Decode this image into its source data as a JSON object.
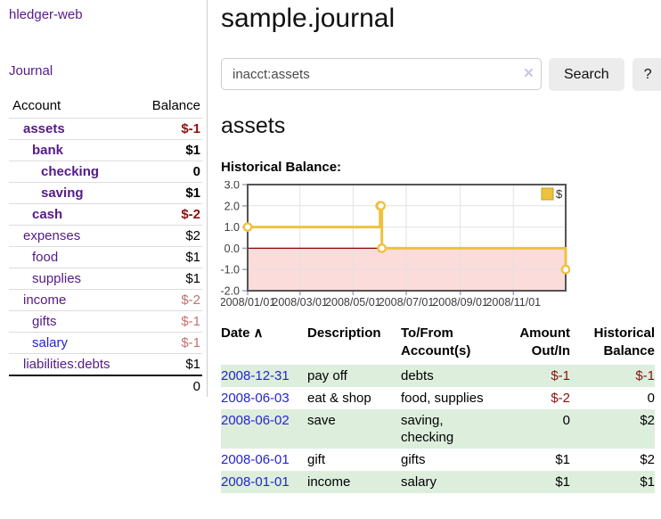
{
  "brand": "hledger-web",
  "sidebar": {
    "journal_link": "Journal",
    "accounts_table": {
      "headers": {
        "account": "Account",
        "balance": "Balance"
      },
      "rows": [
        {
          "name": "assets",
          "balance": "$-1",
          "level": 1,
          "bold": true,
          "balance_color": "dark-red"
        },
        {
          "name": "bank",
          "balance": "$1",
          "level": 2,
          "bold": true,
          "balance_color": "black"
        },
        {
          "name": "checking",
          "balance": "0",
          "level": 3,
          "bold": true,
          "balance_color": "black"
        },
        {
          "name": "saving",
          "balance": "$1",
          "level": 3,
          "bold": true,
          "balance_color": "black"
        },
        {
          "name": "cash",
          "balance": "$-2",
          "level": 2,
          "bold": true,
          "balance_color": "dark-red"
        },
        {
          "name": "expenses",
          "balance": "$2",
          "level": 1,
          "bold": false,
          "balance_color": "black"
        },
        {
          "name": "food",
          "balance": "$1",
          "level": 2,
          "bold": false,
          "balance_color": "black"
        },
        {
          "name": "supplies",
          "balance": "$1",
          "level": 2,
          "bold": false,
          "balance_color": "black"
        },
        {
          "name": "income",
          "balance": "$-2",
          "level": 1,
          "bold": false,
          "balance_color": "soft-red"
        },
        {
          "name": "gifts",
          "balance": "$-1",
          "level": 2,
          "bold": false,
          "balance_color": "soft-red"
        },
        {
          "name": "salary",
          "balance": "$-1",
          "level": 2,
          "bold": false,
          "balance_color": "soft-red",
          "link_color": "blue"
        },
        {
          "name": "liabilities:debts",
          "balance": "$1",
          "level": 1,
          "bold": false,
          "balance_color": "black"
        }
      ],
      "total": "0"
    }
  },
  "main": {
    "title": "sample.journal",
    "search": {
      "value": "inacct:assets",
      "clear_icon": "×",
      "search_button": "Search",
      "help_button": "?"
    },
    "account_heading": "assets",
    "chart_label": "Historical Balance:"
  },
  "chart_data": {
    "type": "line",
    "style": "step",
    "title": "Historical Balance",
    "x_start": "2008-01-01",
    "x_range_days": 365,
    "ylim": [
      -2,
      3
    ],
    "y_ticks": [
      "3.0",
      "2.0",
      "1.0",
      "0.0",
      "-1.0",
      "-2.0"
    ],
    "x_ticks": [
      {
        "label": "2008/01/01",
        "day": 0
      },
      {
        "label": "2008/03/01",
        "day": 60
      },
      {
        "label": "2008/05/01",
        "day": 121
      },
      {
        "label": "2008/07/01",
        "day": 182
      },
      {
        "label": "2008/09/01",
        "day": 244
      },
      {
        "label": "2008/11/01",
        "day": 305
      }
    ],
    "series": [
      {
        "name": "$",
        "color": "#edc240",
        "points": [
          [
            "2008-01-01",
            1
          ],
          [
            "2008-06-01",
            2
          ],
          [
            "2008-06-02",
            2
          ],
          [
            "2008-06-03",
            0
          ],
          [
            "2008-12-31",
            -1
          ]
        ]
      }
    ],
    "legend": {
      "label": "$",
      "position": "top-right"
    },
    "grid": true,
    "negative_region_color": "#fcdbdb",
    "zero_line_color": "#8b0000",
    "border_color": "#545454"
  },
  "register_table": {
    "sort_icon": "∧",
    "headers": {
      "date": "Date",
      "description": "Description",
      "accounts": "To/From Account(s)",
      "amount": "Amount Out/In",
      "balance": "Historical Balance"
    },
    "rows": [
      {
        "date": "2008-12-31",
        "description": "pay off",
        "accounts": "debts",
        "amount": "$-1",
        "balance": "$-1"
      },
      {
        "date": "2008-06-03",
        "description": "eat & shop",
        "accounts": "food, supplies",
        "amount": "$-2",
        "balance": "0"
      },
      {
        "date": "2008-06-02",
        "description": "save",
        "accounts": "saving, checking",
        "amount": "0",
        "balance": "$2"
      },
      {
        "date": "2008-06-01",
        "description": "gift",
        "accounts": "gifts",
        "amount": "$1",
        "balance": "$2"
      },
      {
        "date": "2008-01-01",
        "description": "income",
        "accounts": "salary",
        "amount": "$1",
        "balance": "$1"
      }
    ]
  }
}
